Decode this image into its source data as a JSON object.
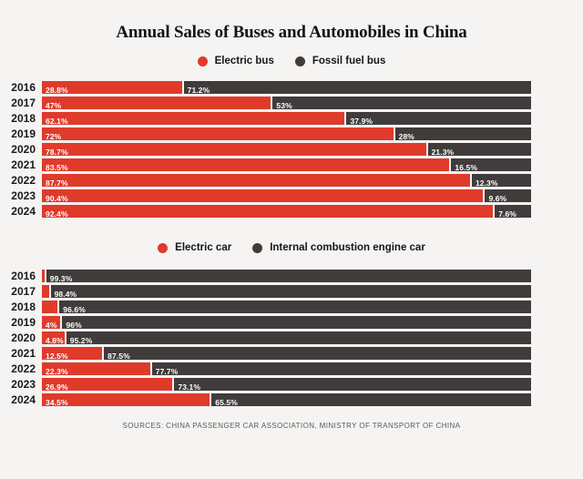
{
  "title": "Annual Sales of Buses and Automobiles in China",
  "footer": "SOURCES: CHINA PASSENGER CAR ASSOCIATION, MINISTRY OF TRANSPORT OF CHINA",
  "colors": {
    "electric": "#e03a2b",
    "other": "#3f3c3b",
    "background": "#f5f4f2"
  },
  "chart_data": [
    {
      "type": "bar",
      "orientation": "horizontal-stacked",
      "title": "",
      "unit": "%",
      "xlim": [
        0,
        100
      ],
      "legend_position": "top-center",
      "categories": [
        "2016",
        "2017",
        "2018",
        "2019",
        "2020",
        "2021",
        "2022",
        "2023",
        "2024"
      ],
      "legend": [
        {
          "label": "Electric bus",
          "color": "#e03a2b"
        },
        {
          "label": "Fossil fuel bus",
          "color": "#3f3c3b"
        }
      ],
      "series": [
        {
          "name": "Electric bus",
          "values": [
            28.8,
            47,
            62.1,
            72,
            78.7,
            83.5,
            87.7,
            90.4,
            92.4
          ],
          "labels": [
            "28.8%",
            "47%",
            "62.1%",
            "72%",
            "78.7%",
            "83.5%",
            "87.7%",
            "90.4%",
            "92.4%"
          ]
        },
        {
          "name": "Fossil fuel bus",
          "values": [
            71.2,
            53,
            37.9,
            28,
            21.3,
            16.5,
            12.3,
            9.6,
            7.6
          ],
          "labels": [
            "71.2%",
            "53%",
            "37.9%",
            "28%",
            "21.3%",
            "16.5%",
            "12.3%",
            "9.6%",
            "7.6%"
          ]
        }
      ]
    },
    {
      "type": "bar",
      "orientation": "horizontal-stacked",
      "title": "",
      "unit": "%",
      "xlim": [
        0,
        100
      ],
      "legend_position": "top-center",
      "categories": [
        "2016",
        "2017",
        "2018",
        "2019",
        "2020",
        "2021",
        "2022",
        "2023",
        "2024"
      ],
      "legend": [
        {
          "label": "Electric car",
          "color": "#e03a2b"
        },
        {
          "label": "Internal combustion engine car",
          "color": "#3f3c3b"
        }
      ],
      "series": [
        {
          "name": "Electric car",
          "values": [
            0.7,
            1.6,
            3.4,
            4,
            4.8,
            12.5,
            22.3,
            26.9,
            34.5
          ],
          "labels": [
            "",
            "",
            "",
            "4%",
            "4.8%",
            "12.5%",
            "22.3%",
            "26.9%",
            "34.5%"
          ]
        },
        {
          "name": "Internal combustion engine car",
          "values": [
            99.3,
            98.4,
            96.6,
            96,
            95.2,
            87.5,
            77.7,
            73.1,
            65.5
          ],
          "labels": [
            "99.3%",
            "98.4%",
            "96.6%",
            "96%",
            "95.2%",
            "87.5%",
            "77.7%",
            "73.1%",
            "65.5%"
          ]
        }
      ]
    }
  ]
}
